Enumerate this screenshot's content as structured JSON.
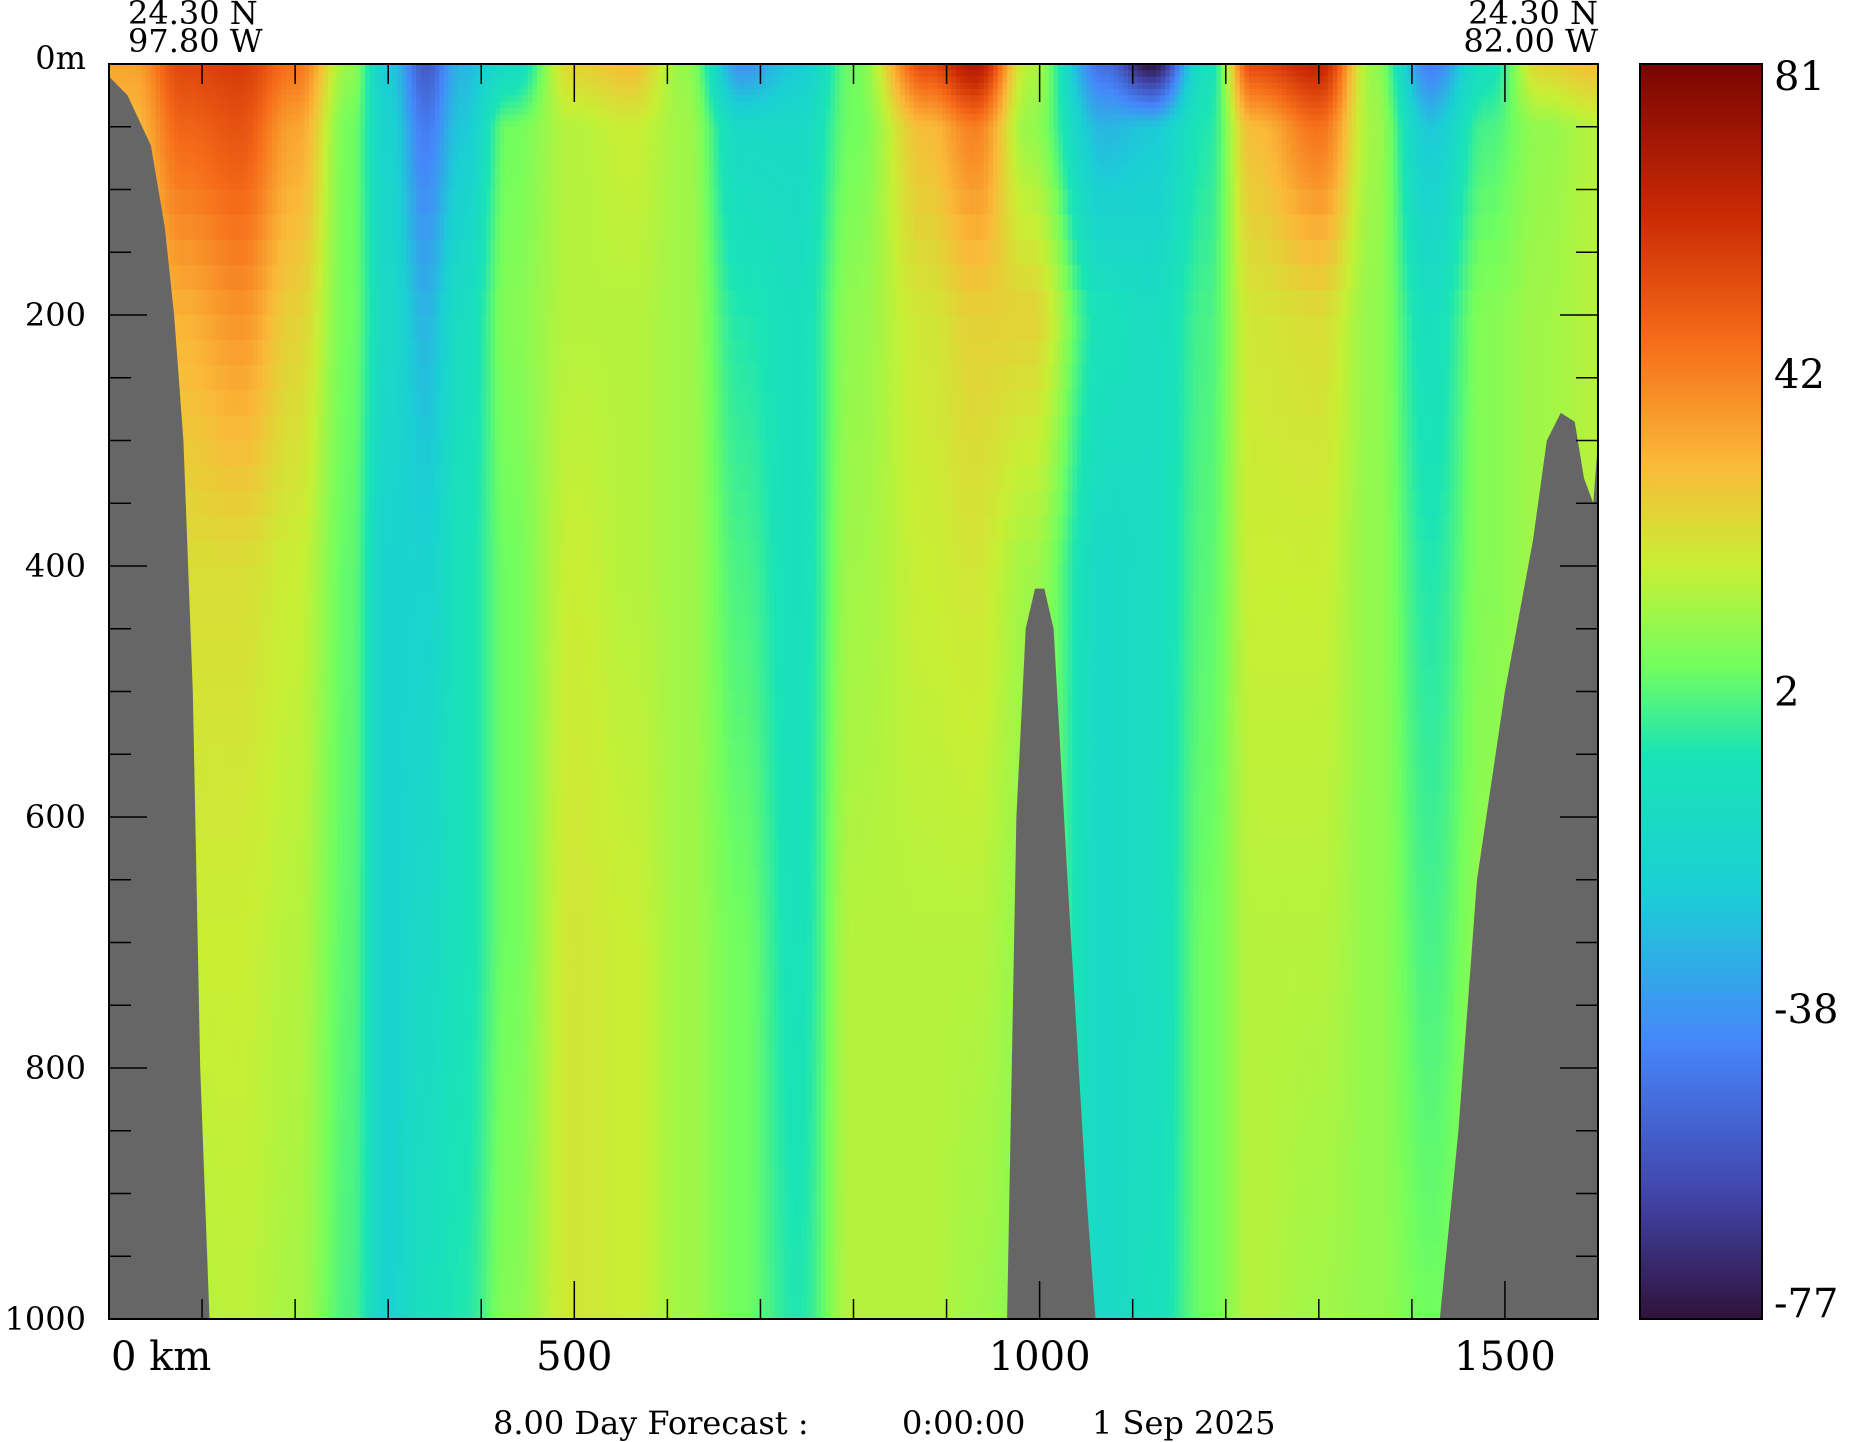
{
  "chart_data": {
    "type": "heatmap",
    "title": "",
    "xlabel": "",
    "ylabel": "",
    "start_coord": {
      "lat": "24.30 N",
      "lon": "97.80 W"
    },
    "end_coord": {
      "lat": "24.30 N",
      "lon": "82.00 W"
    },
    "x_unit": "km",
    "xlim": [
      0,
      1600
    ],
    "x_ticks": [
      {
        "value": 0,
        "label": "0 km"
      },
      {
        "value": 500,
        "label": "500"
      },
      {
        "value": 1000,
        "label": "1000"
      },
      {
        "value": 1500,
        "label": "1500"
      }
    ],
    "ylim": [
      0,
      1000
    ],
    "y_ticks": [
      {
        "value": 0,
        "label": "0m"
      },
      {
        "value": 200,
        "label": "200"
      },
      {
        "value": 400,
        "label": "400"
      },
      {
        "value": 600,
        "label": "600"
      },
      {
        "value": 800,
        "label": "800"
      },
      {
        "value": 1000,
        "label": "1000"
      }
    ],
    "colorbar": {
      "min": -77,
      "max": 81,
      "tick_labels": [
        "81",
        "42",
        "2",
        "-38",
        "-77"
      ],
      "tick_values": [
        81,
        42,
        2,
        -38,
        -77
      ]
    },
    "columns": [
      {
        "x": 25,
        "values": [
          35,
          30,
          22,
          12,
          10,
          8
        ]
      },
      {
        "x": 80,
        "values": [
          55,
          48,
          32,
          22,
          18,
          15
        ]
      },
      {
        "x": 140,
        "values": [
          58,
          52,
          38,
          22,
          18,
          16
        ]
      },
      {
        "x": 200,
        "values": [
          45,
          35,
          25,
          18,
          15,
          13
        ]
      },
      {
        "x": 260,
        "values": [
          10,
          5,
          5,
          3,
          2,
          0
        ]
      },
      {
        "x": 300,
        "values": [
          -25,
          -20,
          -15,
          -20,
          -20,
          -20
        ]
      },
      {
        "x": 340,
        "values": [
          -55,
          -45,
          -30,
          -20,
          -15,
          -10
        ]
      },
      {
        "x": 380,
        "values": [
          -30,
          -25,
          -12,
          -8,
          -8,
          -5
        ]
      },
      {
        "x": 430,
        "values": [
          -15,
          5,
          8,
          5,
          5,
          8
        ]
      },
      {
        "x": 500,
        "values": [
          25,
          15,
          15,
          18,
          20,
          20
        ]
      },
      {
        "x": 560,
        "values": [
          30,
          18,
          15,
          15,
          18,
          18
        ]
      },
      {
        "x": 620,
        "values": [
          10,
          12,
          12,
          12,
          12,
          12
        ]
      },
      {
        "x": 680,
        "values": [
          -40,
          -15,
          -5,
          0,
          5,
          5
        ]
      },
      {
        "x": 740,
        "values": [
          -25,
          -15,
          -10,
          -10,
          -8,
          -5
        ]
      },
      {
        "x": 800,
        "values": [
          5,
          5,
          10,
          12,
          15,
          15
        ]
      },
      {
        "x": 880,
        "values": [
          55,
          30,
          20,
          18,
          15,
          15
        ]
      },
      {
        "x": 930,
        "values": [
          70,
          42,
          25,
          20,
          15,
          12
        ]
      },
      {
        "x": 990,
        "values": [
          15,
          10,
          25,
          12,
          10,
          8
        ]
      },
      {
        "x": 1070,
        "values": [
          -50,
          -30,
          -8,
          -15,
          -15,
          -15
        ]
      },
      {
        "x": 1120,
        "values": [
          -77,
          -25,
          -12,
          -12,
          -12,
          -10
        ]
      },
      {
        "x": 1180,
        "values": [
          -10,
          -5,
          0,
          2,
          5,
          5
        ]
      },
      {
        "x": 1230,
        "values": [
          55,
          30,
          20,
          18,
          15,
          15
        ]
      },
      {
        "x": 1300,
        "values": [
          65,
          45,
          22,
          18,
          15,
          12
        ]
      },
      {
        "x": 1360,
        "values": [
          10,
          12,
          10,
          10,
          10,
          10
        ]
      },
      {
        "x": 1420,
        "values": [
          -45,
          -25,
          -10,
          -5,
          0,
          5
        ]
      },
      {
        "x": 1480,
        "values": [
          -10,
          0,
          8,
          8,
          10,
          10
        ]
      },
      {
        "x": 1540,
        "values": [
          25,
          10,
          12,
          12,
          12,
          12
        ]
      },
      {
        "x": 1600,
        "values": [
          30,
          15,
          15,
          15,
          15,
          15
        ]
      }
    ],
    "depths": [
      0,
      50,
      200,
      400,
      700,
      1000
    ],
    "bathymetry": [
      [
        0,
        10
      ],
      [
        20,
        25
      ],
      [
        45,
        65
      ],
      [
        60,
        130
      ],
      [
        70,
        200
      ],
      [
        80,
        300
      ],
      [
        90,
        500
      ],
      [
        98,
        800
      ],
      [
        108,
        1000
      ],
      [
        965,
        1000
      ],
      [
        975,
        600
      ],
      [
        985,
        450
      ],
      [
        995,
        418
      ],
      [
        1005,
        418
      ],
      [
        1015,
        450
      ],
      [
        1030,
        650
      ],
      [
        1050,
        900
      ],
      [
        1060,
        1000
      ],
      [
        1430,
        1000
      ],
      [
        1450,
        850
      ],
      [
        1470,
        650
      ],
      [
        1500,
        500
      ],
      [
        1530,
        380
      ],
      [
        1545,
        300
      ],
      [
        1560,
        278
      ],
      [
        1575,
        285
      ],
      [
        1585,
        330
      ],
      [
        1595,
        350
      ],
      [
        1600,
        300
      ]
    ]
  },
  "footer": {
    "forecast_label": "8.00 Day Forecast :",
    "time": "0:00:00",
    "date": "1 Sep 2025"
  }
}
